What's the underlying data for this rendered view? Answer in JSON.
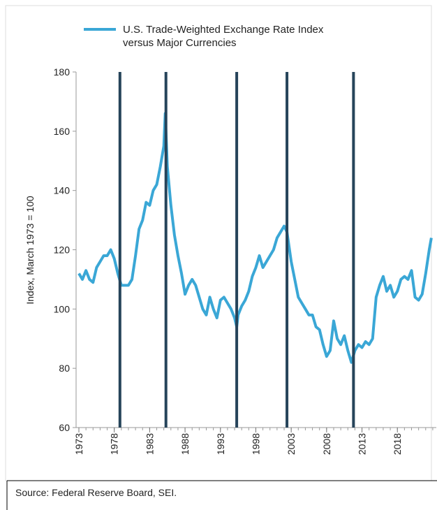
{
  "chart_data": {
    "type": "line",
    "series": [
      {
        "name": "U.S. Trade-Weighted Exchange Rate Index versus Major Currencies",
        "color": "#3aa7d6",
        "x": [
          1973,
          1973.5,
          1974,
          1974.5,
          1975,
          1975.5,
          1976,
          1976.5,
          1977,
          1977.5,
          1978,
          1978.5,
          1979,
          1979.5,
          1980,
          1980.5,
          1981,
          1981.5,
          1982,
          1982.5,
          1983,
          1983.5,
          1984,
          1984.5,
          1985,
          1985.2,
          1985.5,
          1986,
          1986.5,
          1987,
          1987.5,
          1988,
          1988.5,
          1989,
          1989.5,
          1990,
          1990.5,
          1991,
          1991.5,
          1992,
          1992.5,
          1993,
          1993.5,
          1994,
          1994.5,
          1995,
          1995.3,
          1995.5,
          1996,
          1996.5,
          1997,
          1997.5,
          1998,
          1998.5,
          1999,
          1999.5,
          2000,
          2000.5,
          2001,
          2001.5,
          2002,
          2002.4,
          2003,
          2003.5,
          2004,
          2004.5,
          2005,
          2005.5,
          2006,
          2006.5,
          2007,
          2007.5,
          2008,
          2008.5,
          2009,
          2009.5,
          2010,
          2010.5,
          2011,
          2011.5,
          2012,
          2012.5,
          2013,
          2013.5,
          2014,
          2014.5,
          2015,
          2015.5,
          2016,
          2016.5,
          2017,
          2017.5,
          2018,
          2018.5,
          2019,
          2019.5,
          2020,
          2020.5,
          2021,
          2021.5,
          2022,
          2022.5,
          2022.8
        ],
        "values": [
          112,
          110,
          113,
          110,
          109,
          114,
          116,
          118,
          118,
          120,
          117,
          112,
          108,
          108,
          108,
          110,
          118,
          127,
          130,
          136,
          135,
          140,
          142,
          148,
          155,
          166,
          148,
          135,
          125,
          118,
          112,
          105,
          108,
          110,
          108,
          104,
          100,
          98,
          104,
          100,
          97,
          103,
          104,
          102,
          100,
          97,
          94,
          98,
          101,
          103,
          106,
          111,
          114,
          118,
          114,
          116,
          118,
          120,
          124,
          126,
          128,
          126,
          116,
          110,
          104,
          102,
          100,
          98,
          98,
          94,
          93,
          88,
          84,
          86,
          96,
          90,
          88,
          91,
          86,
          82,
          86,
          88,
          87,
          89,
          88,
          90,
          104,
          108,
          111,
          106,
          108,
          104,
          106,
          110,
          111,
          110,
          113,
          104,
          103,
          105,
          112,
          120,
          124
        ]
      }
    ],
    "vlines": [
      1978.8,
      1985.3,
      1995.3,
      2002.4,
      2011.8
    ],
    "ylabel": "Index, March 1973 = 100",
    "xlim": [
      1973,
      2023.5
    ],
    "xticks": [
      1973,
      1978,
      1983,
      1988,
      1993,
      1998,
      2003,
      2008,
      2013,
      2018
    ],
    "ylim": [
      60,
      180
    ],
    "yticks": [
      60,
      80,
      100,
      120,
      140,
      160,
      180
    ],
    "source": "Source: Federal Reserve Board, SEI."
  }
}
